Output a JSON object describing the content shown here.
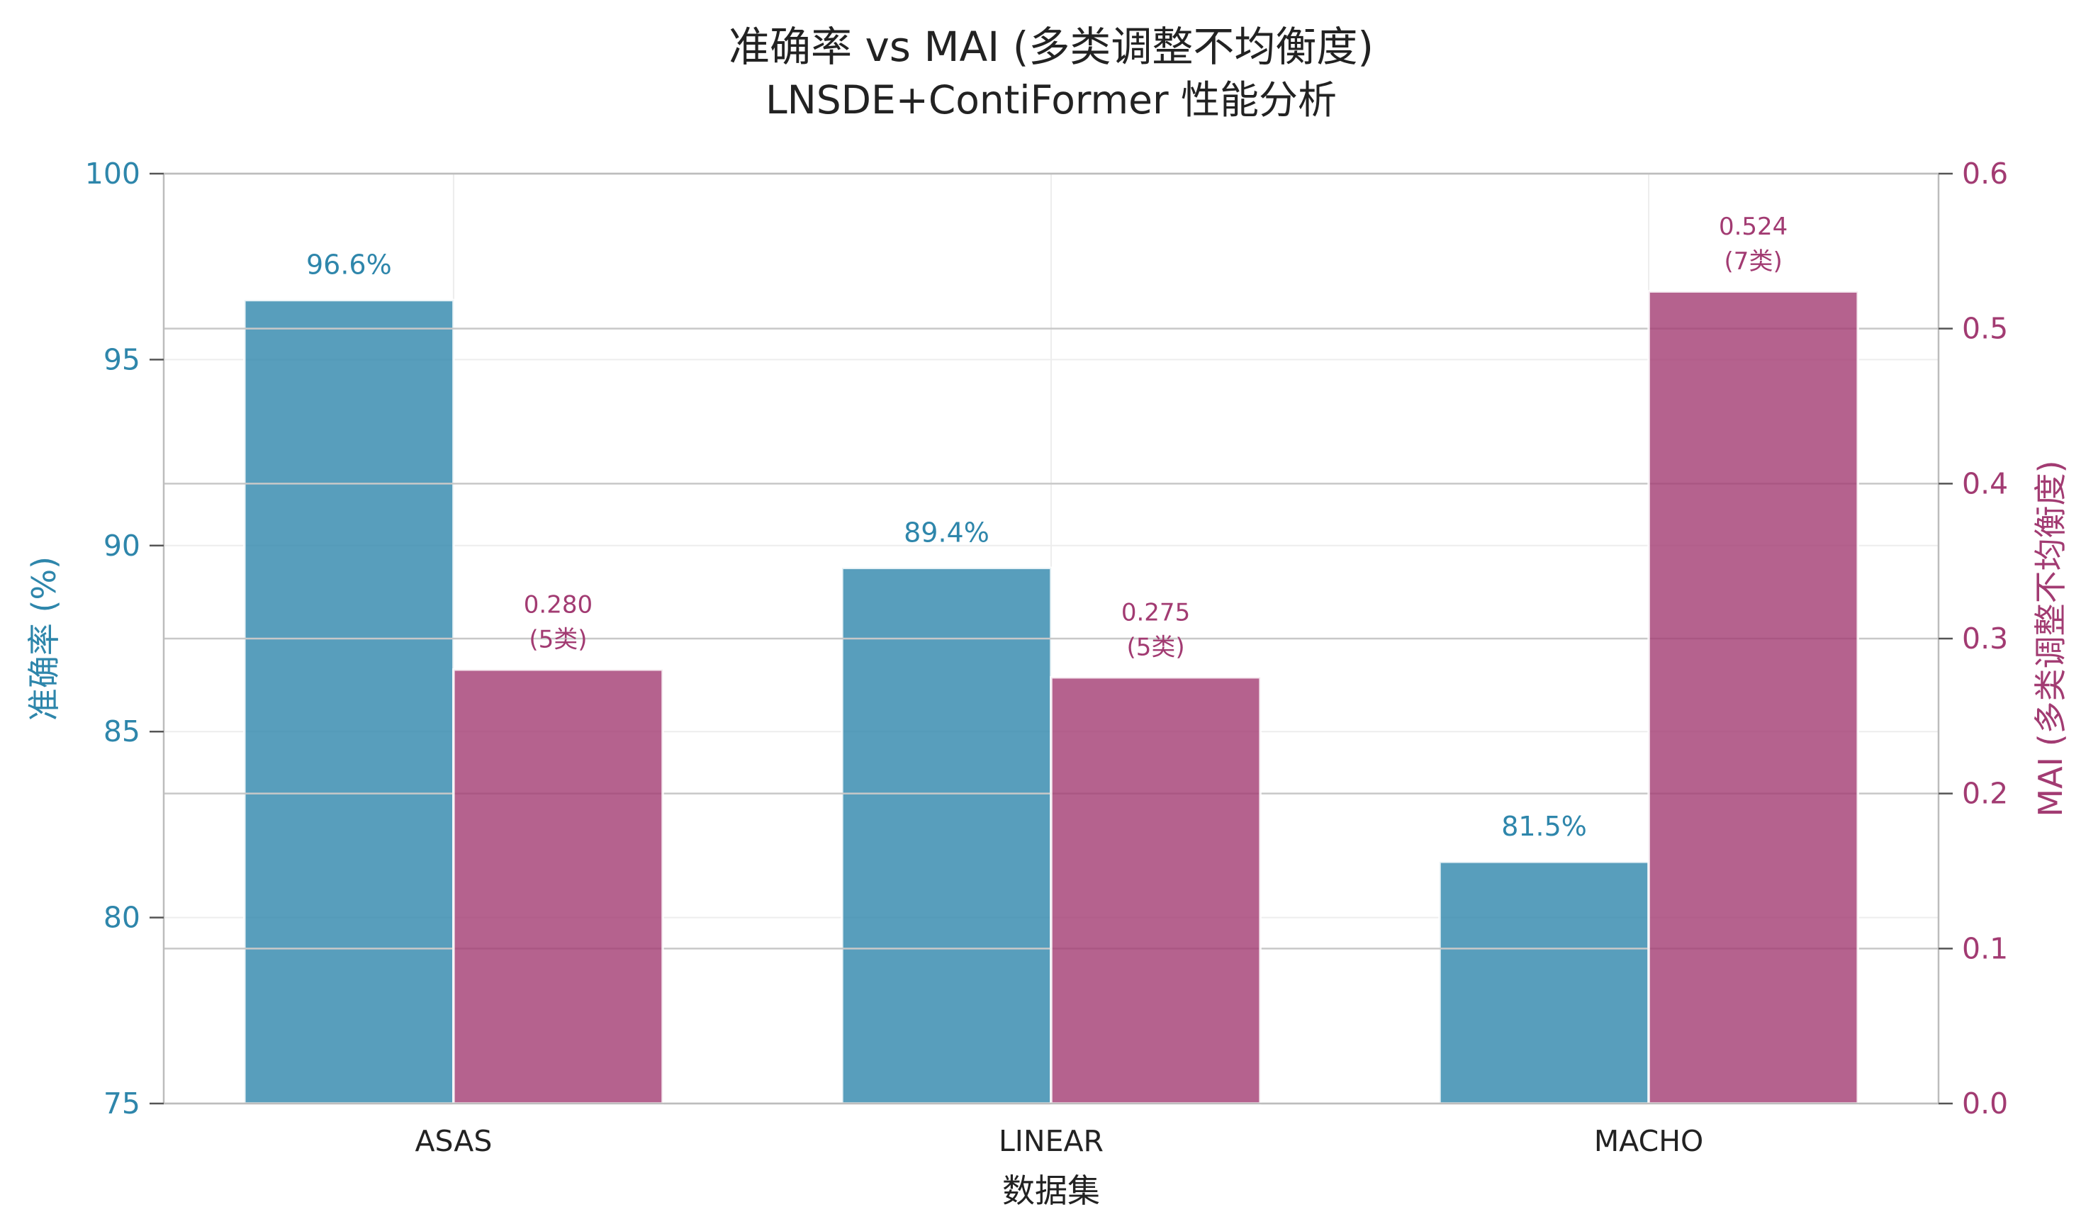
{
  "chart_data": {
    "type": "bar",
    "title": "准确率 vs MAI (多类调整不均衡度)",
    "subtitle": "LNSDE+ContiFormer 性能分析",
    "xlabel": "数据集",
    "categories": [
      "ASAS",
      "LINEAR",
      "MACHO"
    ],
    "grid": true,
    "y_left": {
      "label": "准确率 (%)",
      "ylim": [
        75,
        100
      ],
      "ticks": [
        "75",
        "80",
        "85",
        "90",
        "95",
        "100"
      ],
      "color": "#2E86AB"
    },
    "y_right": {
      "label": "MAI (多类调整不均衡度)",
      "ylim": [
        0,
        0.6
      ],
      "ticks": [
        "0.0",
        "0.1",
        "0.2",
        "0.3",
        "0.4",
        "0.5",
        "0.6"
      ],
      "color": "#A23B72"
    },
    "series": [
      {
        "values": [
          96.6,
          89.4,
          81.5
        ],
        "labels": [
          "96.6%",
          "89.4%",
          "81.5%"
        ],
        "color": "#2E86AB"
      },
      {
        "values": [
          0.28,
          0.275,
          0.524
        ],
        "labels": [
          "0.280",
          "0.275",
          "0.524"
        ],
        "class_counts": [
          "(5类)",
          "(5类)",
          "(7类)"
        ],
        "color": "#A23B72"
      }
    ]
  }
}
